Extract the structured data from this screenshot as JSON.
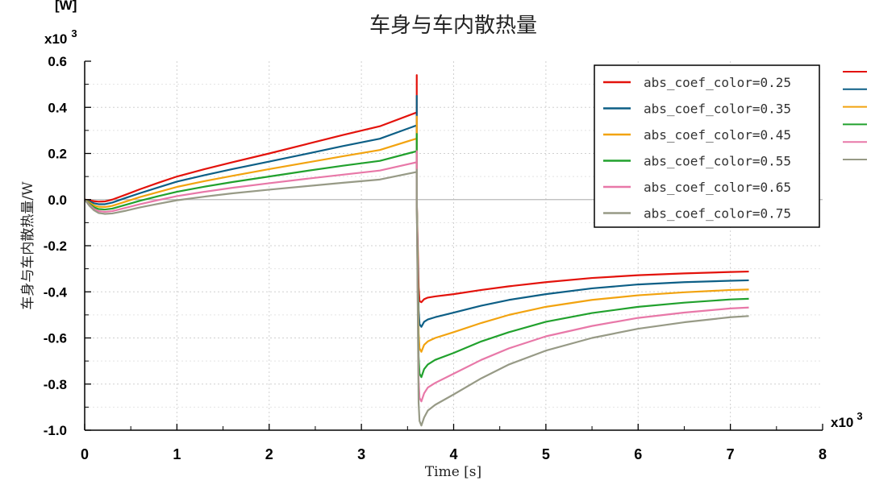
{
  "chart_data": {
    "type": "line",
    "title": "车身与车内散热量",
    "ylabel": "车身与车内散热量/W",
    "xlabel": "Time [s]",
    "y_unit_label": "[W]",
    "y_scale_label": "x10",
    "y_scale_exp": "3",
    "x_scale_label": "x10",
    "x_scale_exp": "3",
    "xlim": [
      0,
      8
    ],
    "ylim": [
      -1.0,
      0.6
    ],
    "x_ticks": [
      "0",
      "1",
      "2",
      "3",
      "4",
      "5",
      "6",
      "7",
      "8"
    ],
    "y_ticks": [
      "0.6",
      "0.4",
      "0.2",
      "0.0",
      "-0.2",
      "-0.4",
      "-0.6",
      "-0.8",
      "-1.0"
    ],
    "grid": true,
    "legend_position": "top-right",
    "series": [
      {
        "name": "abs_coef_color=0.25",
        "color": "#e3120b",
        "x": [
          0,
          0.05,
          0.1,
          0.15,
          0.22,
          0.3,
          0.45,
          0.6,
          0.8,
          1.0,
          1.3,
          1.6,
          2.0,
          2.4,
          2.8,
          3.2,
          3.6,
          3.6,
          3.6,
          3.62,
          3.63,
          3.65,
          3.68,
          3.72,
          3.8,
          4.0,
          4.3,
          4.6,
          5.0,
          5.5,
          6.0,
          6.5,
          7.0,
          7.2
        ],
        "y": [
          0.0,
          -0.003,
          -0.007,
          -0.009,
          -0.008,
          0.0,
          0.022,
          0.045,
          0.073,
          0.1,
          0.132,
          0.162,
          0.2,
          0.24,
          0.28,
          0.318,
          0.378,
          0.54,
          0.0,
          -0.38,
          -0.44,
          -0.445,
          -0.432,
          -0.425,
          -0.42,
          -0.41,
          -0.392,
          -0.376,
          -0.358,
          -0.34,
          -0.328,
          -0.32,
          -0.314,
          -0.312
        ]
      },
      {
        "name": "abs_coef_color=0.35",
        "color": "#0d5f86",
        "x": [
          0,
          0.05,
          0.1,
          0.15,
          0.22,
          0.3,
          0.45,
          0.6,
          0.8,
          1.0,
          1.3,
          1.6,
          2.0,
          2.4,
          2.8,
          3.2,
          3.6,
          3.6,
          3.6,
          3.62,
          3.63,
          3.65,
          3.68,
          3.72,
          3.8,
          4.0,
          4.3,
          4.6,
          5.0,
          5.5,
          6.0,
          6.5,
          7.0,
          7.2
        ],
        "y": [
          0.0,
          -0.008,
          -0.016,
          -0.02,
          -0.02,
          -0.013,
          0.008,
          0.028,
          0.053,
          0.078,
          0.106,
          0.132,
          0.165,
          0.198,
          0.232,
          0.264,
          0.322,
          0.45,
          0.0,
          -0.48,
          -0.54,
          -0.552,
          -0.53,
          -0.52,
          -0.51,
          -0.49,
          -0.46,
          -0.435,
          -0.41,
          -0.385,
          -0.368,
          -0.358,
          -0.352,
          -0.35
        ]
      },
      {
        "name": "abs_coef_color=0.45",
        "color": "#f2a30f",
        "x": [
          0,
          0.05,
          0.1,
          0.15,
          0.22,
          0.3,
          0.45,
          0.6,
          0.8,
          1.0,
          1.3,
          1.6,
          2.0,
          2.4,
          2.8,
          3.2,
          3.6,
          3.6,
          3.6,
          3.62,
          3.63,
          3.65,
          3.68,
          3.72,
          3.8,
          4.0,
          4.3,
          4.6,
          5.0,
          5.5,
          6.0,
          6.5,
          7.0,
          7.2
        ],
        "y": [
          0.0,
          -0.013,
          -0.025,
          -0.031,
          -0.032,
          -0.027,
          -0.008,
          0.011,
          0.033,
          0.055,
          0.08,
          0.103,
          0.132,
          0.16,
          0.188,
          0.215,
          0.265,
          0.36,
          0.0,
          -0.58,
          -0.645,
          -0.66,
          -0.63,
          -0.615,
          -0.6,
          -0.575,
          -0.535,
          -0.5,
          -0.465,
          -0.435,
          -0.415,
          -0.402,
          -0.392,
          -0.39
        ]
      },
      {
        "name": "abs_coef_color=0.55",
        "color": "#21a12d",
        "x": [
          0,
          0.05,
          0.1,
          0.15,
          0.22,
          0.3,
          0.45,
          0.6,
          0.8,
          1.0,
          1.3,
          1.6,
          2.0,
          2.4,
          2.8,
          3.2,
          3.6,
          3.6,
          3.6,
          3.62,
          3.63,
          3.65,
          3.68,
          3.72,
          3.8,
          4.0,
          4.3,
          4.6,
          5.0,
          5.5,
          6.0,
          6.5,
          7.0,
          7.2
        ],
        "y": [
          0.0,
          -0.018,
          -0.033,
          -0.041,
          -0.043,
          -0.039,
          -0.022,
          -0.005,
          0.015,
          0.034,
          0.056,
          0.076,
          0.1,
          0.124,
          0.147,
          0.168,
          0.21,
          0.285,
          0.0,
          -0.68,
          -0.755,
          -0.77,
          -0.735,
          -0.715,
          -0.695,
          -0.665,
          -0.615,
          -0.575,
          -0.53,
          -0.492,
          -0.465,
          -0.447,
          -0.433,
          -0.43
        ]
      },
      {
        "name": "abs_coef_color=0.65",
        "color": "#e878a8",
        "x": [
          0,
          0.05,
          0.1,
          0.15,
          0.22,
          0.3,
          0.45,
          0.6,
          0.8,
          1.0,
          1.3,
          1.6,
          2.0,
          2.4,
          2.8,
          3.2,
          3.6,
          3.6,
          3.6,
          3.62,
          3.63,
          3.65,
          3.68,
          3.72,
          3.8,
          4.0,
          4.3,
          4.6,
          5.0,
          5.5,
          6.0,
          6.5,
          7.0,
          7.2
        ],
        "y": [
          0.0,
          -0.022,
          -0.04,
          -0.05,
          -0.053,
          -0.05,
          -0.035,
          -0.02,
          -0.002,
          0.015,
          0.034,
          0.051,
          0.071,
          0.09,
          0.108,
          0.126,
          0.162,
          0.21,
          0.0,
          -0.78,
          -0.86,
          -0.875,
          -0.84,
          -0.815,
          -0.795,
          -0.755,
          -0.695,
          -0.645,
          -0.593,
          -0.548,
          -0.513,
          -0.49,
          -0.472,
          -0.468
        ]
      },
      {
        "name": "abs_coef_color=0.75",
        "color": "#979a86",
        "x": [
          0,
          0.05,
          0.1,
          0.15,
          0.22,
          0.3,
          0.45,
          0.6,
          0.8,
          1.0,
          1.3,
          1.6,
          2.0,
          2.4,
          2.8,
          3.2,
          3.6,
          3.6,
          3.6,
          3.62,
          3.63,
          3.65,
          3.68,
          3.72,
          3.8,
          4.0,
          4.3,
          4.6,
          5.0,
          5.5,
          6.0,
          6.5,
          7.0,
          7.2
        ],
        "y": [
          0.0,
          -0.026,
          -0.046,
          -0.058,
          -0.062,
          -0.06,
          -0.048,
          -0.034,
          -0.018,
          -0.003,
          0.013,
          0.027,
          0.043,
          0.058,
          0.073,
          0.087,
          0.12,
          0.13,
          0.0,
          -0.88,
          -0.96,
          -0.98,
          -0.945,
          -0.915,
          -0.89,
          -0.845,
          -0.775,
          -0.715,
          -0.655,
          -0.6,
          -0.56,
          -0.532,
          -0.51,
          -0.505
        ]
      }
    ]
  }
}
